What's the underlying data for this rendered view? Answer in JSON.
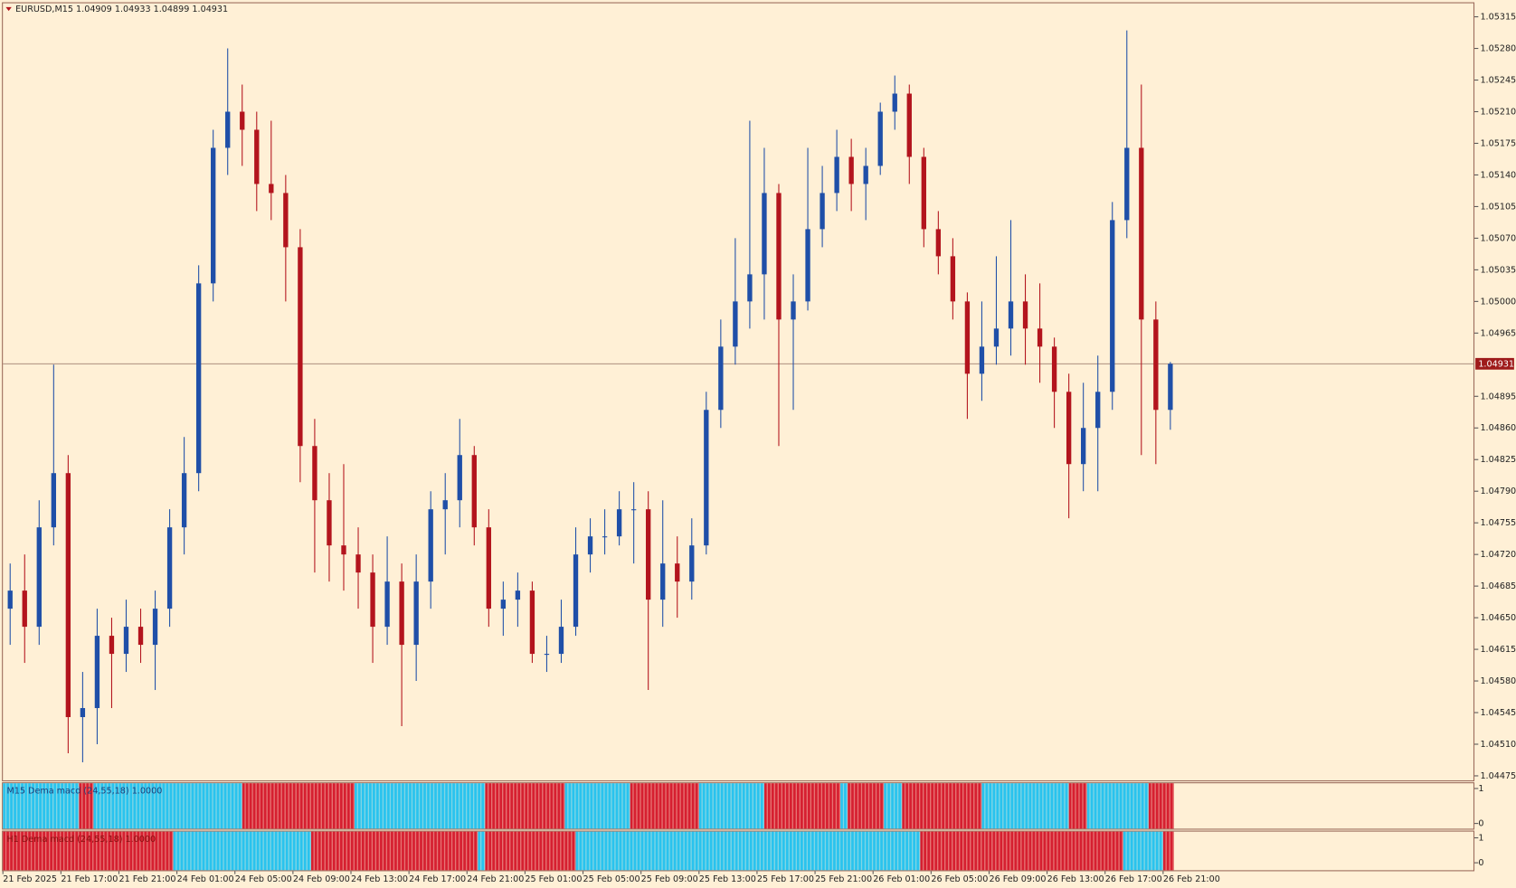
{
  "chart_data": {
    "type": "candlestick",
    "title": "EURUSD,M15  1.04909 1.04933 1.04899 1.04931",
    "bull_color": "#1f4fa8",
    "bear_color": "#b3141d",
    "ylim": [
      1.0447,
      1.0533
    ],
    "yticks": [
      1.04475,
      {
        "value": 1.0451,
        "label": "1.04510"
      },
      1.04545,
      {
        "value": 1.0458,
        "label": "1.04580"
      },
      1.04615,
      {
        "value": 1.0465,
        "label": "1.04650"
      },
      1.04685,
      {
        "value": 1.0472,
        "label": "1.04720"
      },
      1.04755,
      {
        "value": 1.0479,
        "label": "1.04790"
      },
      1.04825,
      {
        "value": 1.0486,
        "label": "1.04860"
      },
      1.04895,
      1.04965,
      {
        "value": 1.05,
        "label": "1.05000"
      },
      1.05035,
      {
        "value": 1.0507,
        "label": "1.05070"
      },
      1.05105,
      {
        "value": 1.0514,
        "label": "1.05140"
      },
      1.05175,
      {
        "value": 1.0521,
        "label": "1.05210"
      },
      1.05245,
      {
        "value": 1.0528,
        "label": "1.05280"
      },
      1.05315
    ],
    "current_price": 1.04931,
    "categories": [
      "21 Feb 2025",
      null,
      null,
      null,
      "21 Feb 17:00",
      null,
      null,
      null,
      "21 Feb 21:00",
      null,
      null,
      null,
      "24 Feb 01:00",
      null,
      null,
      null,
      "24 Feb 05:00",
      null,
      null,
      null,
      "24 Feb 09:00",
      null,
      null,
      null,
      "24 Feb 13:00",
      null,
      null,
      null,
      "24 Feb 17:00",
      null,
      null,
      null,
      "24 Feb 21:00",
      null,
      null,
      null,
      "25 Feb 01:00",
      null,
      null,
      null,
      "25 Feb 05:00",
      null,
      null,
      null,
      "25 Feb 09:00",
      null,
      null,
      null,
      "25 Feb 13:00",
      null,
      null,
      null,
      "25 Feb 17:00",
      null,
      null,
      null,
      "25 Feb 21:00",
      null,
      null,
      null,
      "26 Feb 01:00",
      null,
      null,
      null,
      "26 Feb 05:00",
      null,
      null,
      null,
      "26 Feb 09:00",
      null,
      null,
      null,
      "26 Feb 13:00",
      null,
      null,
      null,
      "26 Feb 17:00",
      null,
      null,
      null,
      "26 Feb 21:00"
    ],
    "open": [
      1.0466,
      1.0468,
      1.0464,
      1.0475,
      1.0481,
      1.0454,
      1.0455,
      1.0463,
      1.0461,
      1.0464,
      1.0462,
      1.0466,
      1.0475,
      1.0481,
      1.0502,
      1.0517,
      1.0521,
      1.0519,
      1.0513,
      1.0512,
      1.0506,
      1.0484,
      1.0478,
      1.0473,
      1.0472,
      1.047,
      1.0464,
      1.0469,
      1.0462,
      1.0469,
      1.0477,
      1.0478,
      1.0483,
      1.0475,
      1.0466,
      1.0467,
      1.0468,
      1.0461,
      1.0461,
      1.0464,
      1.0472,
      1.0474,
      1.0474,
      1.0477,
      1.0477,
      1.0467,
      1.0471,
      1.0469,
      1.0473,
      1.0488,
      1.0495,
      1.05,
      1.0503,
      1.0512,
      1.0498,
      1.05,
      1.0508,
      1.0512,
      1.0516,
      1.0513,
      1.0515,
      1.0521,
      1.0523,
      1.0516,
      1.0508,
      1.0505,
      1.05,
      1.0492,
      1.0495,
      1.0497,
      1.05,
      1.0497,
      1.0495,
      1.049,
      1.0482,
      1.0486,
      1.049,
      1.0509,
      1.0517,
      1.0498,
      1.0488
    ],
    "high": [
      1.0471,
      1.0472,
      1.0478,
      1.0493,
      1.0483,
      1.0459,
      1.0466,
      1.0465,
      1.0467,
      1.0466,
      1.0468,
      1.0477,
      1.0485,
      1.0504,
      1.0519,
      1.0528,
      1.0524,
      1.0521,
      1.052,
      1.0514,
      1.0508,
      1.0487,
      1.0481,
      1.0482,
      1.0475,
      1.0472,
      1.0474,
      1.0471,
      1.0472,
      1.0479,
      1.0481,
      1.0487,
      1.0484,
      1.0477,
      1.0469,
      1.047,
      1.0469,
      1.0463,
      1.0467,
      1.0475,
      1.0476,
      1.0477,
      1.0479,
      1.048,
      1.0479,
      1.0478,
      1.0474,
      1.0476,
      1.049,
      1.0498,
      1.0507,
      1.052,
      1.0517,
      1.0513,
      1.0503,
      1.0517,
      1.0515,
      1.0519,
      1.0518,
      1.0517,
      1.0522,
      1.0525,
      1.0524,
      1.0517,
      1.051,
      1.0507,
      1.0501,
      1.05,
      1.0505,
      1.0509,
      1.0503,
      1.0502,
      1.0496,
      1.0492,
      1.0491,
      1.0494,
      1.0511,
      1.053,
      1.0524,
      1.05,
      1.04933
    ],
    "low": [
      1.0462,
      1.046,
      1.0462,
      1.0473,
      1.045,
      1.0449,
      1.0451,
      1.0455,
      1.0459,
      1.046,
      1.0457,
      1.0464,
      1.0472,
      1.0479,
      1.05,
      1.0514,
      1.0515,
      1.051,
      1.0509,
      1.05,
      1.048,
      1.047,
      1.0469,
      1.0468,
      1.0466,
      1.046,
      1.0462,
      1.0453,
      1.0458,
      1.0466,
      1.0472,
      1.0475,
      1.0473,
      1.0464,
      1.0463,
      1.0464,
      1.046,
      1.0459,
      1.046,
      1.0463,
      1.047,
      1.0472,
      1.0473,
      1.0471,
      1.0457,
      1.0464,
      1.0465,
      1.0467,
      1.0472,
      1.0486,
      1.0493,
      1.0497,
      1.0498,
      1.0484,
      1.0488,
      1.0499,
      1.0506,
      1.051,
      1.051,
      1.0509,
      1.0514,
      1.0519,
      1.0513,
      1.0506,
      1.0503,
      1.0498,
      1.0487,
      1.0489,
      1.0493,
      1.0494,
      1.0493,
      1.0491,
      1.0486,
      1.0476,
      1.0479,
      1.0479,
      1.0488,
      1.0507,
      1.0483,
      1.0482,
      1.04858
    ],
    "close": [
      1.0468,
      1.0464,
      1.0475,
      1.0481,
      1.0454,
      1.0455,
      1.0463,
      1.0461,
      1.0464,
      1.0462,
      1.0466,
      1.0475,
      1.0481,
      1.0502,
      1.0517,
      1.0521,
      1.0519,
      1.0513,
      1.0512,
      1.0506,
      1.0484,
      1.0478,
      1.0473,
      1.0472,
      1.047,
      1.0464,
      1.0469,
      1.0462,
      1.0469,
      1.0477,
      1.0478,
      1.0483,
      1.0475,
      1.0466,
      1.0467,
      1.0468,
      1.0461,
      1.0461,
      1.0464,
      1.0472,
      1.0474,
      1.0474,
      1.0477,
      1.0477,
      1.0467,
      1.0471,
      1.0469,
      1.0473,
      1.0488,
      1.0495,
      1.05,
      1.0503,
      1.0512,
      1.0498,
      1.05,
      1.0508,
      1.0512,
      1.0516,
      1.0513,
      1.0515,
      1.0521,
      1.0523,
      1.0516,
      1.0508,
      1.0505,
      1.05,
      1.0492,
      1.0495,
      1.0497,
      1.05,
      1.0497,
      1.0495,
      1.049,
      1.0482,
      1.0486,
      1.049,
      1.0509,
      1.0517,
      1.0498,
      1.0488,
      1.04931
    ],
    "panels": [
      {
        "label": "M15 Dema macd (24,55,18)  1.0000",
        "ylim": [
          -0.15,
          1.15
        ],
        "yticks": [
          1,
          0
        ],
        "runs": [
          {
            "color": "#29c3ee",
            "count": 21
          },
          {
            "color": "#d61f30",
            "count": 4
          },
          {
            "color": "#29c3ee",
            "count": 41
          },
          {
            "color": "#d61f30",
            "count": 31
          },
          {
            "color": "#29c3ee",
            "count": 36
          },
          {
            "color": "#d61f30",
            "count": 22
          },
          {
            "color": "#29c3ee",
            "count": 18
          },
          {
            "color": "#d61f30",
            "count": 19
          },
          {
            "color": "#29c3ee",
            "count": 18
          },
          {
            "color": "#d61f30",
            "count": 21
          },
          {
            "color": "#29c3ee",
            "count": 2
          },
          {
            "color": "#d61f30",
            "count": 10
          },
          {
            "color": "#29c3ee",
            "count": 5
          },
          {
            "color": "#d61f30",
            "count": 22
          },
          {
            "color": "#29c3ee",
            "count": 24
          },
          {
            "color": "#d61f30",
            "count": 5
          },
          {
            "color": "#29c3ee",
            "count": 17
          },
          {
            "color": "#d61f30",
            "count": 7
          }
        ]
      },
      {
        "label": "H1 Dema macd (24,55,18)  1.0000",
        "ylim": [
          -0.3,
          1.25
        ],
        "yticks": [
          1,
          0
        ],
        "runs": [
          {
            "color": "#d61f30",
            "count": 47
          },
          {
            "color": "#29c3ee",
            "count": 38
          },
          {
            "color": "#d61f30",
            "count": 46
          },
          {
            "color": "#29c3ee",
            "count": 2
          },
          {
            "color": "#d61f30",
            "count": 25
          },
          {
            "color": "#29c3ee",
            "count": 95
          },
          {
            "color": "#d61f30",
            "count": 56
          },
          {
            "color": "#29c3ee",
            "count": 11
          },
          {
            "color": "#d61f30",
            "count": 3
          }
        ]
      }
    ]
  }
}
